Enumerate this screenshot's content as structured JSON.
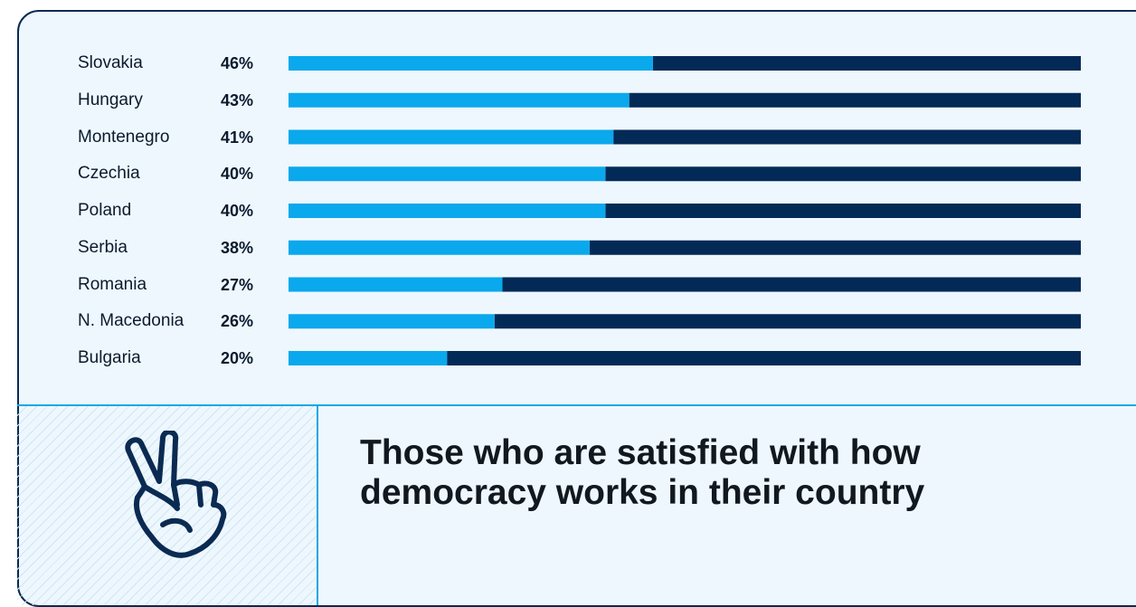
{
  "chart_data": {
    "type": "bar",
    "orientation": "horizontal",
    "stacked": true,
    "categories": [
      "Slovakia",
      "Hungary",
      "Montenegro",
      "Czechia",
      "Poland",
      "Serbia",
      "Romania",
      "N. Macedonia",
      "Bulgaria"
    ],
    "values": [
      46,
      43,
      41,
      40,
      40,
      38,
      27,
      26,
      20
    ],
    "value_labels": [
      "46%",
      "43%",
      "41%",
      "40%",
      "40%",
      "38%",
      "27%",
      "26%",
      "20%"
    ],
    "xlim": [
      0,
      100
    ],
    "colors": {
      "value": "#0aa8ec",
      "remainder": "#032a56"
    },
    "grid": false,
    "legend": "none"
  },
  "caption": "Those who are satisfied with how democracy works in their country",
  "icon": "peace-hand-icon",
  "colors": {
    "background": "#eef7fd",
    "border": "#0a2a52",
    "accent": "#12a9e6"
  }
}
